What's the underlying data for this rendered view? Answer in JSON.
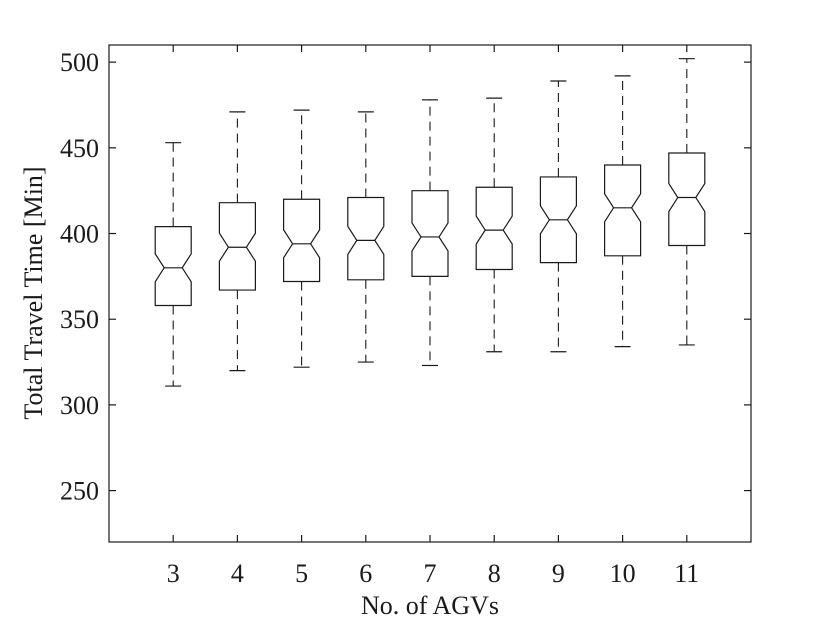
{
  "chart_data": {
    "type": "boxplot",
    "xlabel": "No. of AGVs",
    "ylabel": "Total Travel Time [Min]",
    "ylim": [
      220,
      510
    ],
    "yticks": [
      250,
      300,
      350,
      400,
      450,
      500
    ],
    "categories": [
      "3",
      "4",
      "5",
      "6",
      "7",
      "8",
      "9",
      "10",
      "11"
    ],
    "boxes": [
      {
        "category": "3",
        "whisker_low": 311,
        "q1": 358,
        "median": 380,
        "q3": 404,
        "whisker_high": 453
      },
      {
        "category": "4",
        "whisker_low": 320,
        "q1": 367,
        "median": 392,
        "q3": 418,
        "whisker_high": 471
      },
      {
        "category": "5",
        "whisker_low": 322,
        "q1": 372,
        "median": 394,
        "q3": 420,
        "whisker_high": 472
      },
      {
        "category": "6",
        "whisker_low": 325,
        "q1": 373,
        "median": 396,
        "q3": 421,
        "whisker_high": 471
      },
      {
        "category": "7",
        "whisker_low": 323,
        "q1": 375,
        "median": 398,
        "q3": 425,
        "whisker_high": 478
      },
      {
        "category": "8",
        "whisker_low": 331,
        "q1": 379,
        "median": 402,
        "q3": 427,
        "whisker_high": 479
      },
      {
        "category": "9",
        "whisker_low": 331,
        "q1": 383,
        "median": 408,
        "q3": 433,
        "whisker_high": 489
      },
      {
        "category": "10",
        "whisker_low": 334,
        "q1": 387,
        "median": 415,
        "q3": 440,
        "whisker_high": 492
      },
      {
        "category": "11",
        "whisker_low": 335,
        "q1": 393,
        "median": 421,
        "q3": 447,
        "whisker_high": 502
      }
    ],
    "notched": true,
    "grid": false,
    "box_color": "#1a1a1a",
    "whisker_style": "dashed"
  }
}
